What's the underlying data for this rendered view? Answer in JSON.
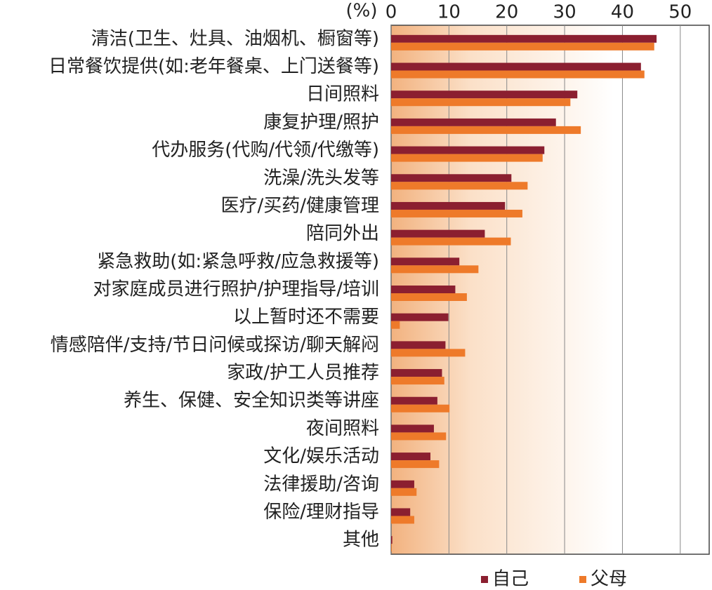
{
  "chart_data": {
    "type": "barh",
    "x_label": "(%)",
    "categories": [
      "清洁(卫生、灶具、油烟机、橱窗等)",
      "日常餐饮提供(如:老年餐桌、上门送餐等)",
      "日间照料",
      "康复护理/照护",
      "代办服务(代购/代领/代缴等)",
      "洗澡/洗头发等",
      "医疗/买药/健康管理",
      "陪同外出",
      "紧急救助(如:紧急呼救/应急救援等)",
      "对家庭成员进行照护/护理指导/培训",
      "以上暂时还不需要",
      "情感陪伴/支持/节日问候或探访/聊天解闷",
      "家政/护工人员推荐",
      "养生、保健、安全知识类等讲座",
      "夜间照料",
      "文化/娱乐活动",
      "法律援助/咨询",
      "保险/理财指导",
      "其他"
    ],
    "series": [
      {
        "name": "自己",
        "color": "#8b1f30",
        "values": [
          45.9,
          43.2,
          32.2,
          28.5,
          26.5,
          20.8,
          19.7,
          16.2,
          11.8,
          11.1,
          9.9,
          9.4,
          8.8,
          8.0,
          7.4,
          6.8,
          4.0,
          3.3,
          0.2
        ]
      },
      {
        "name": "父母",
        "color": "#ee7a2a",
        "values": [
          45.5,
          43.8,
          31.0,
          32.8,
          26.2,
          23.6,
          22.7,
          20.7,
          15.1,
          13.1,
          1.5,
          12.8,
          9.2,
          10.1,
          9.5,
          8.3,
          4.4,
          4.0,
          0.1
        ]
      }
    ],
    "xlim": [
      0,
      55
    ],
    "xticks": [
      0,
      10,
      20,
      30,
      40,
      50
    ],
    "grid": true
  }
}
